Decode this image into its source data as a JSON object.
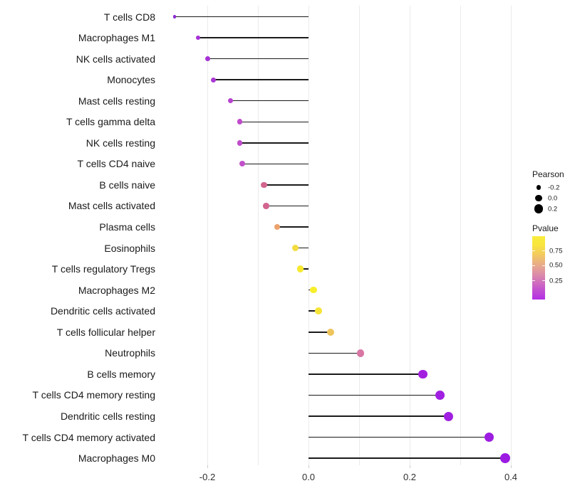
{
  "chart_data": {
    "type": "lollipop",
    "orientation": "horizontal",
    "title": "",
    "xlabel": "",
    "ylabel": "",
    "xlim": [
      -0.276,
      0.44
    ],
    "x_tick_labels": [
      "-0.2",
      "0.0",
      "0.2",
      "0.4"
    ],
    "x_tick_values": [
      -0.2,
      0.0,
      0.2,
      0.4
    ],
    "gridline_values": [
      -0.2,
      -0.1,
      0.0,
      0.1,
      0.2,
      0.3,
      0.4
    ],
    "grid": "vertical-only",
    "stick_color": "#1a1a1a",
    "rows": [
      {
        "label": "T cells CD8",
        "pearson": -0.265,
        "dot_color": "#8c2bd0",
        "dot_r": 2.1
      },
      {
        "label": "Macrophages M1",
        "pearson": -0.218,
        "dot_color": "#a430d6",
        "dot_r": 3.2
      },
      {
        "label": "NK cells activated",
        "pearson": -0.199,
        "dot_color": "#a631d6",
        "dot_r": 3.5
      },
      {
        "label": "Monocytes",
        "pearson": -0.188,
        "dot_color": "#ab38d5",
        "dot_r": 3.6
      },
      {
        "label": "Mast cells resting",
        "pearson": -0.154,
        "dot_color": "#b843d0",
        "dot_r": 3.8
      },
      {
        "label": "T cells gamma delta",
        "pearson": -0.136,
        "dot_color": "#bf4ccc",
        "dot_r": 3.9
      },
      {
        "label": "NK cells resting",
        "pearson": -0.136,
        "dot_color": "#bf4ccc",
        "dot_r": 3.9
      },
      {
        "label": "T cells CD4 naive",
        "pearson": -0.131,
        "dot_color": "#c250ca",
        "dot_r": 4.0
      },
      {
        "label": "B cells naive",
        "pearson": -0.088,
        "dot_color": "#d2648f",
        "dot_r": 4.3
      },
      {
        "label": "Mast cells activated",
        "pearson": -0.084,
        "dot_color": "#d2648f",
        "dot_r": 4.3
      },
      {
        "label": "Plasma cells",
        "pearson": -0.062,
        "dot_color": "#eba26c",
        "dot_r": 4.4
      },
      {
        "label": "Eosinophils",
        "pearson": -0.026,
        "dot_color": "#f2dc3f",
        "dot_r": 4.6
      },
      {
        "label": "T cells regulatory  Tregs",
        "pearson": -0.016,
        "dot_color": "#f7e92f",
        "dot_r": 4.7
      },
      {
        "label": "Macrophages M2",
        "pearson": 0.01,
        "dot_color": "#f8ee2a",
        "dot_r": 4.8
      },
      {
        "label": "Dendritic cells activated",
        "pearson": 0.02,
        "dot_color": "#f5e437",
        "dot_r": 4.9
      },
      {
        "label": "T cells follicular helper",
        "pearson": 0.043,
        "dot_color": "#eec45c",
        "dot_r": 5.0
      },
      {
        "label": "Neutrophils",
        "pearson": 0.103,
        "dot_color": "#d876a4",
        "dot_r": 5.4
      },
      {
        "label": "B cells memory",
        "pearson": 0.226,
        "dot_color": "#a21fdf",
        "dot_r": 6.2
      },
      {
        "label": "T cells CD4 memory resting",
        "pearson": 0.26,
        "dot_color": "#a01fe0",
        "dot_r": 6.4
      },
      {
        "label": "Dendritic cells resting",
        "pearson": 0.276,
        "dot_color": "#a01fe0",
        "dot_r": 6.5
      },
      {
        "label": "T cells CD4 memory activated",
        "pearson": 0.357,
        "dot_color": "#9d1de1",
        "dot_r": 6.9
      },
      {
        "label": "Macrophages M0",
        "pearson": 0.389,
        "dot_color": "#9c1be2",
        "dot_r": 7.1
      }
    ],
    "legend": {
      "size": {
        "title": "Pearson",
        "dot_color": "#000000",
        "items": [
          {
            "label": "-0.2",
            "r": 3.2
          },
          {
            "label": "0.0",
            "r": 4.9
          },
          {
            "label": "0.2",
            "r": 6.2
          }
        ]
      },
      "color": {
        "title": "Pvalue",
        "tick_labels": [
          "0.75",
          "0.50",
          "0.25"
        ],
        "gradient_stops_bottom_to_top": [
          "#b32ee4",
          "#c24fd0",
          "#d173bb",
          "#df93a3",
          "#eaaf84",
          "#f3cb5e",
          "#f8e53f",
          "#f9ed3c"
        ]
      }
    }
  }
}
